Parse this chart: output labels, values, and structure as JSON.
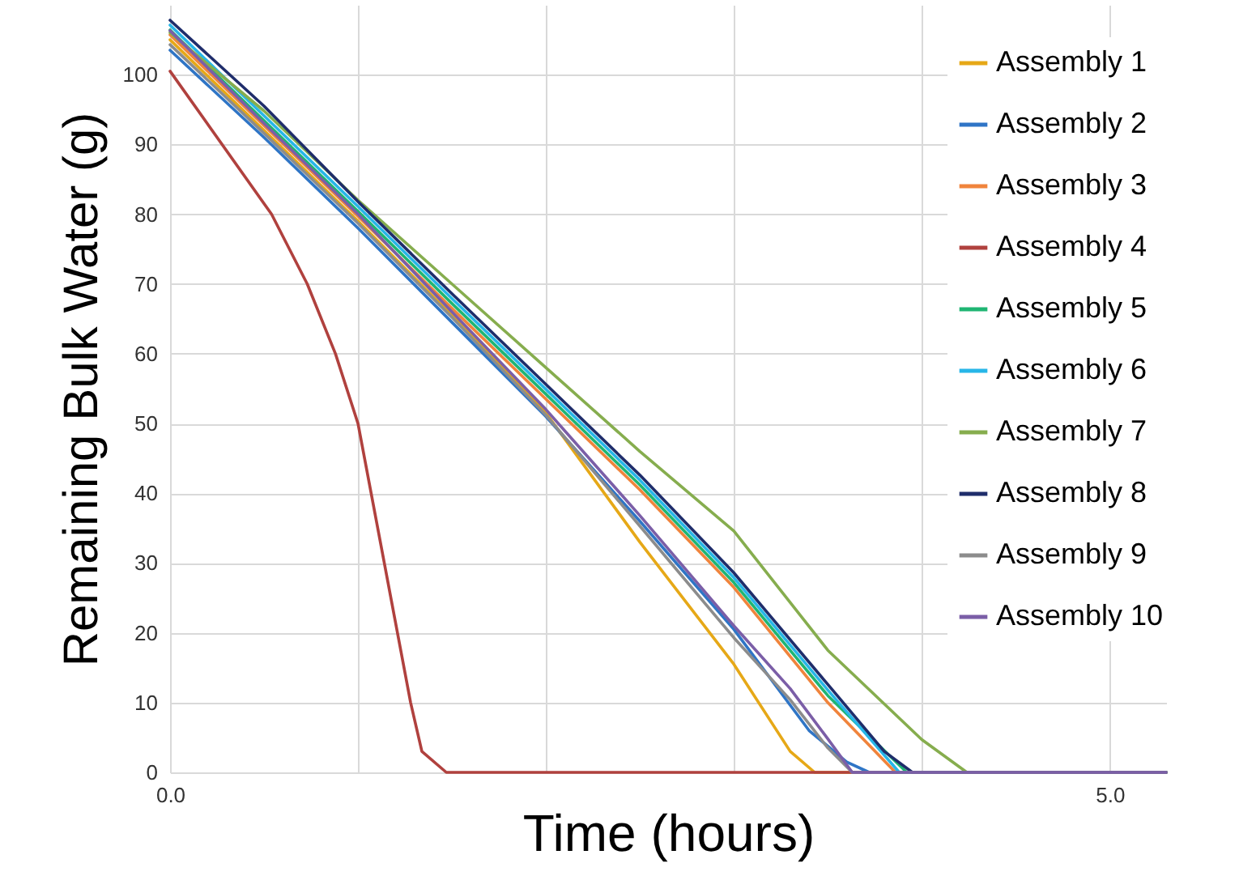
{
  "chart_data": {
    "type": "line",
    "xlabel": "Time (hours)",
    "ylabel": "Remaining Bulk Water (g)",
    "xlim": [
      0,
      5.3
    ],
    "ylim": [
      0,
      110
    ],
    "xticks": [
      {
        "value": 0,
        "label": "0.0"
      },
      {
        "value": 1,
        "label": null
      },
      {
        "value": 2,
        "label": null
      },
      {
        "value": 3,
        "label": null
      },
      {
        "value": 4,
        "label": null
      },
      {
        "value": 5,
        "label": "5.0"
      }
    ],
    "yticks": [
      0,
      10,
      20,
      30,
      40,
      50,
      60,
      70,
      80,
      90,
      100
    ],
    "grid": true,
    "legend": "top right",
    "marker": "none",
    "line_style": "solid",
    "series": [
      {
        "name": "Assembly 1",
        "color": "#e6a817",
        "x": [
          0,
          0.5,
          1,
          1.5,
          2,
          2.5,
          3,
          3.3,
          3.43,
          5.3
        ],
        "values": [
          105,
          92,
          79,
          65.5,
          51.5,
          33,
          15.5,
          3,
          0,
          0
        ]
      },
      {
        "name": "Assembly 2",
        "color": "#2f75c6",
        "x": [
          0,
          0.5,
          1,
          1.5,
          2,
          2.5,
          3,
          3.4,
          3.6,
          3.72,
          5.3
        ],
        "values": [
          103.5,
          91,
          78,
          64.5,
          51,
          36,
          20.5,
          6,
          1.5,
          0,
          0
        ]
      },
      {
        "name": "Assembly 3",
        "color": "#f0843c",
        "x": [
          0,
          0.5,
          1,
          1.5,
          2,
          2.5,
          3,
          3.5,
          3.86,
          5.3
        ],
        "values": [
          105.7,
          92.7,
          79.7,
          66.5,
          53.5,
          40.5,
          26.5,
          10,
          0,
          0
        ]
      },
      {
        "name": "Assembly 4",
        "color": "#b0413e",
        "x": [
          0,
          0.54,
          0.73,
          0.88,
          1,
          1.14,
          1.28,
          1.34,
          1.47,
          5.3
        ],
        "values": [
          100.5,
          80,
          70,
          60,
          50,
          30,
          10,
          3,
          0,
          0
        ]
      },
      {
        "name": "Assembly 5",
        "color": "#1fb573",
        "x": [
          0,
          0.5,
          1,
          1.5,
          2,
          2.5,
          3,
          3.5,
          3.92,
          5.3
        ],
        "values": [
          106.4,
          93.4,
          80.4,
          67.2,
          54.2,
          41.2,
          27.2,
          11,
          0,
          0
        ]
      },
      {
        "name": "Assembly 6",
        "color": "#27b6e8",
        "x": [
          0,
          0.5,
          1,
          1.5,
          2,
          2.5,
          3,
          3.5,
          3.88,
          5.3
        ],
        "values": [
          107.1,
          94.1,
          81.1,
          67.9,
          54.9,
          41.9,
          27.9,
          11.8,
          0,
          0
        ]
      },
      {
        "name": "Assembly 7",
        "color": "#86ad4e",
        "x": [
          0,
          0.5,
          1,
          1.5,
          2,
          2.5,
          3,
          3.5,
          4,
          4.24,
          5.3
        ],
        "values": [
          106,
          94.8,
          82,
          70,
          58,
          46,
          34.6,
          17.5,
          4.7,
          0,
          0
        ]
      },
      {
        "name": "Assembly 8",
        "color": "#1f2d6b",
        "x": [
          0,
          0.5,
          1,
          1.5,
          2,
          2.5,
          3,
          3.5,
          3.8,
          3.95,
          5.3
        ],
        "values": [
          107.8,
          95.5,
          81.8,
          68.6,
          55.6,
          42.6,
          28.6,
          12.6,
          3,
          0,
          0
        ]
      },
      {
        "name": "Assembly 9",
        "color": "#8c8c8c",
        "x": [
          0,
          0.5,
          1,
          1.5,
          2,
          2.5,
          3,
          3.3,
          3.5,
          3.63,
          5.3
        ],
        "values": [
          104.3,
          91.6,
          78.7,
          65.2,
          51.2,
          35.3,
          19.3,
          10.4,
          3.5,
          0,
          0
        ]
      },
      {
        "name": "Assembly 10",
        "color": "#7b5ea7",
        "x": [
          0,
          0.5,
          1,
          1.5,
          2,
          2.5,
          3,
          3.3,
          3.5,
          3.63,
          5.3
        ],
        "values": [
          106.3,
          93,
          80,
          66,
          52,
          36.8,
          21,
          12,
          4.8,
          0,
          0
        ]
      }
    ]
  }
}
